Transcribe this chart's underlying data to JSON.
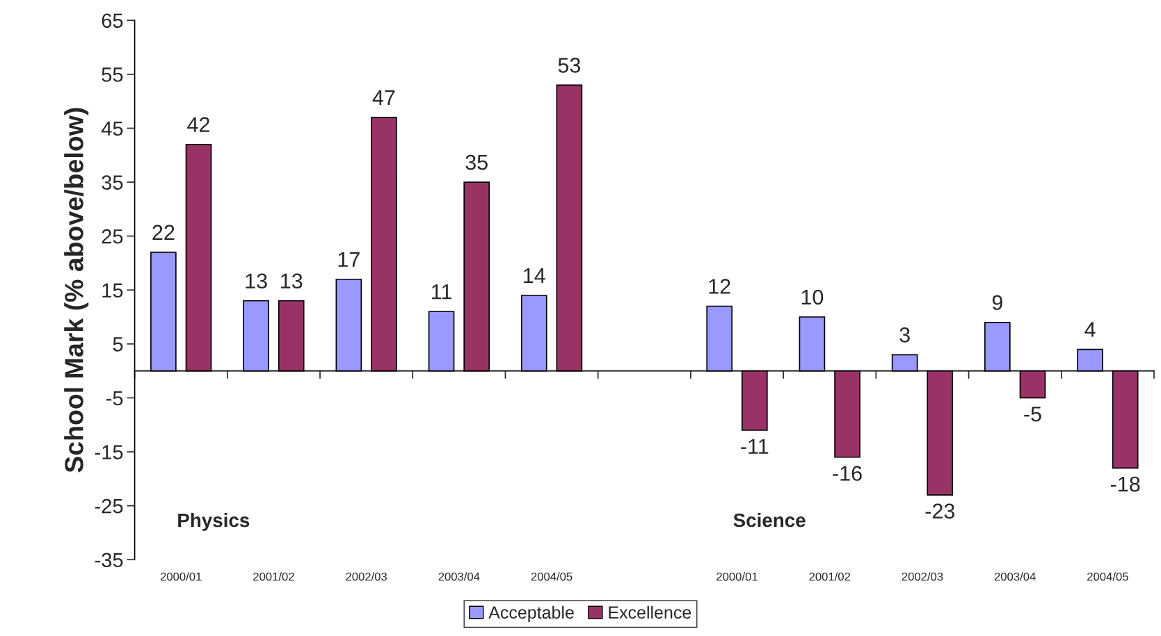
{
  "chart_data": {
    "type": "bar",
    "ylabel": "School Mark (% above/below)",
    "categories": [
      "2000/01",
      "2001/02",
      "2002/03",
      "2003/04",
      "2004/05",
      null,
      "2000/01",
      "2001/02",
      "2002/03",
      "2003/04",
      "2004/05"
    ],
    "series": [
      {
        "name": "Acceptable",
        "color": "#9999ff",
        "values": [
          22,
          13,
          17,
          11,
          14,
          null,
          12,
          10,
          3,
          9,
          4
        ]
      },
      {
        "name": "Excellence",
        "color": "#993366",
        "values": [
          42,
          13,
          47,
          35,
          53,
          null,
          -11,
          -16,
          -23,
          -5,
          -18
        ]
      }
    ],
    "ylim": [
      -35,
      65
    ],
    "yticks": [
      -35,
      -25,
      -15,
      -5,
      5,
      15,
      25,
      35,
      45,
      55,
      65
    ],
    "annotations": [
      "Physics",
      "Science"
    ],
    "data_labels": true,
    "grid": false,
    "legend": "bottom"
  }
}
